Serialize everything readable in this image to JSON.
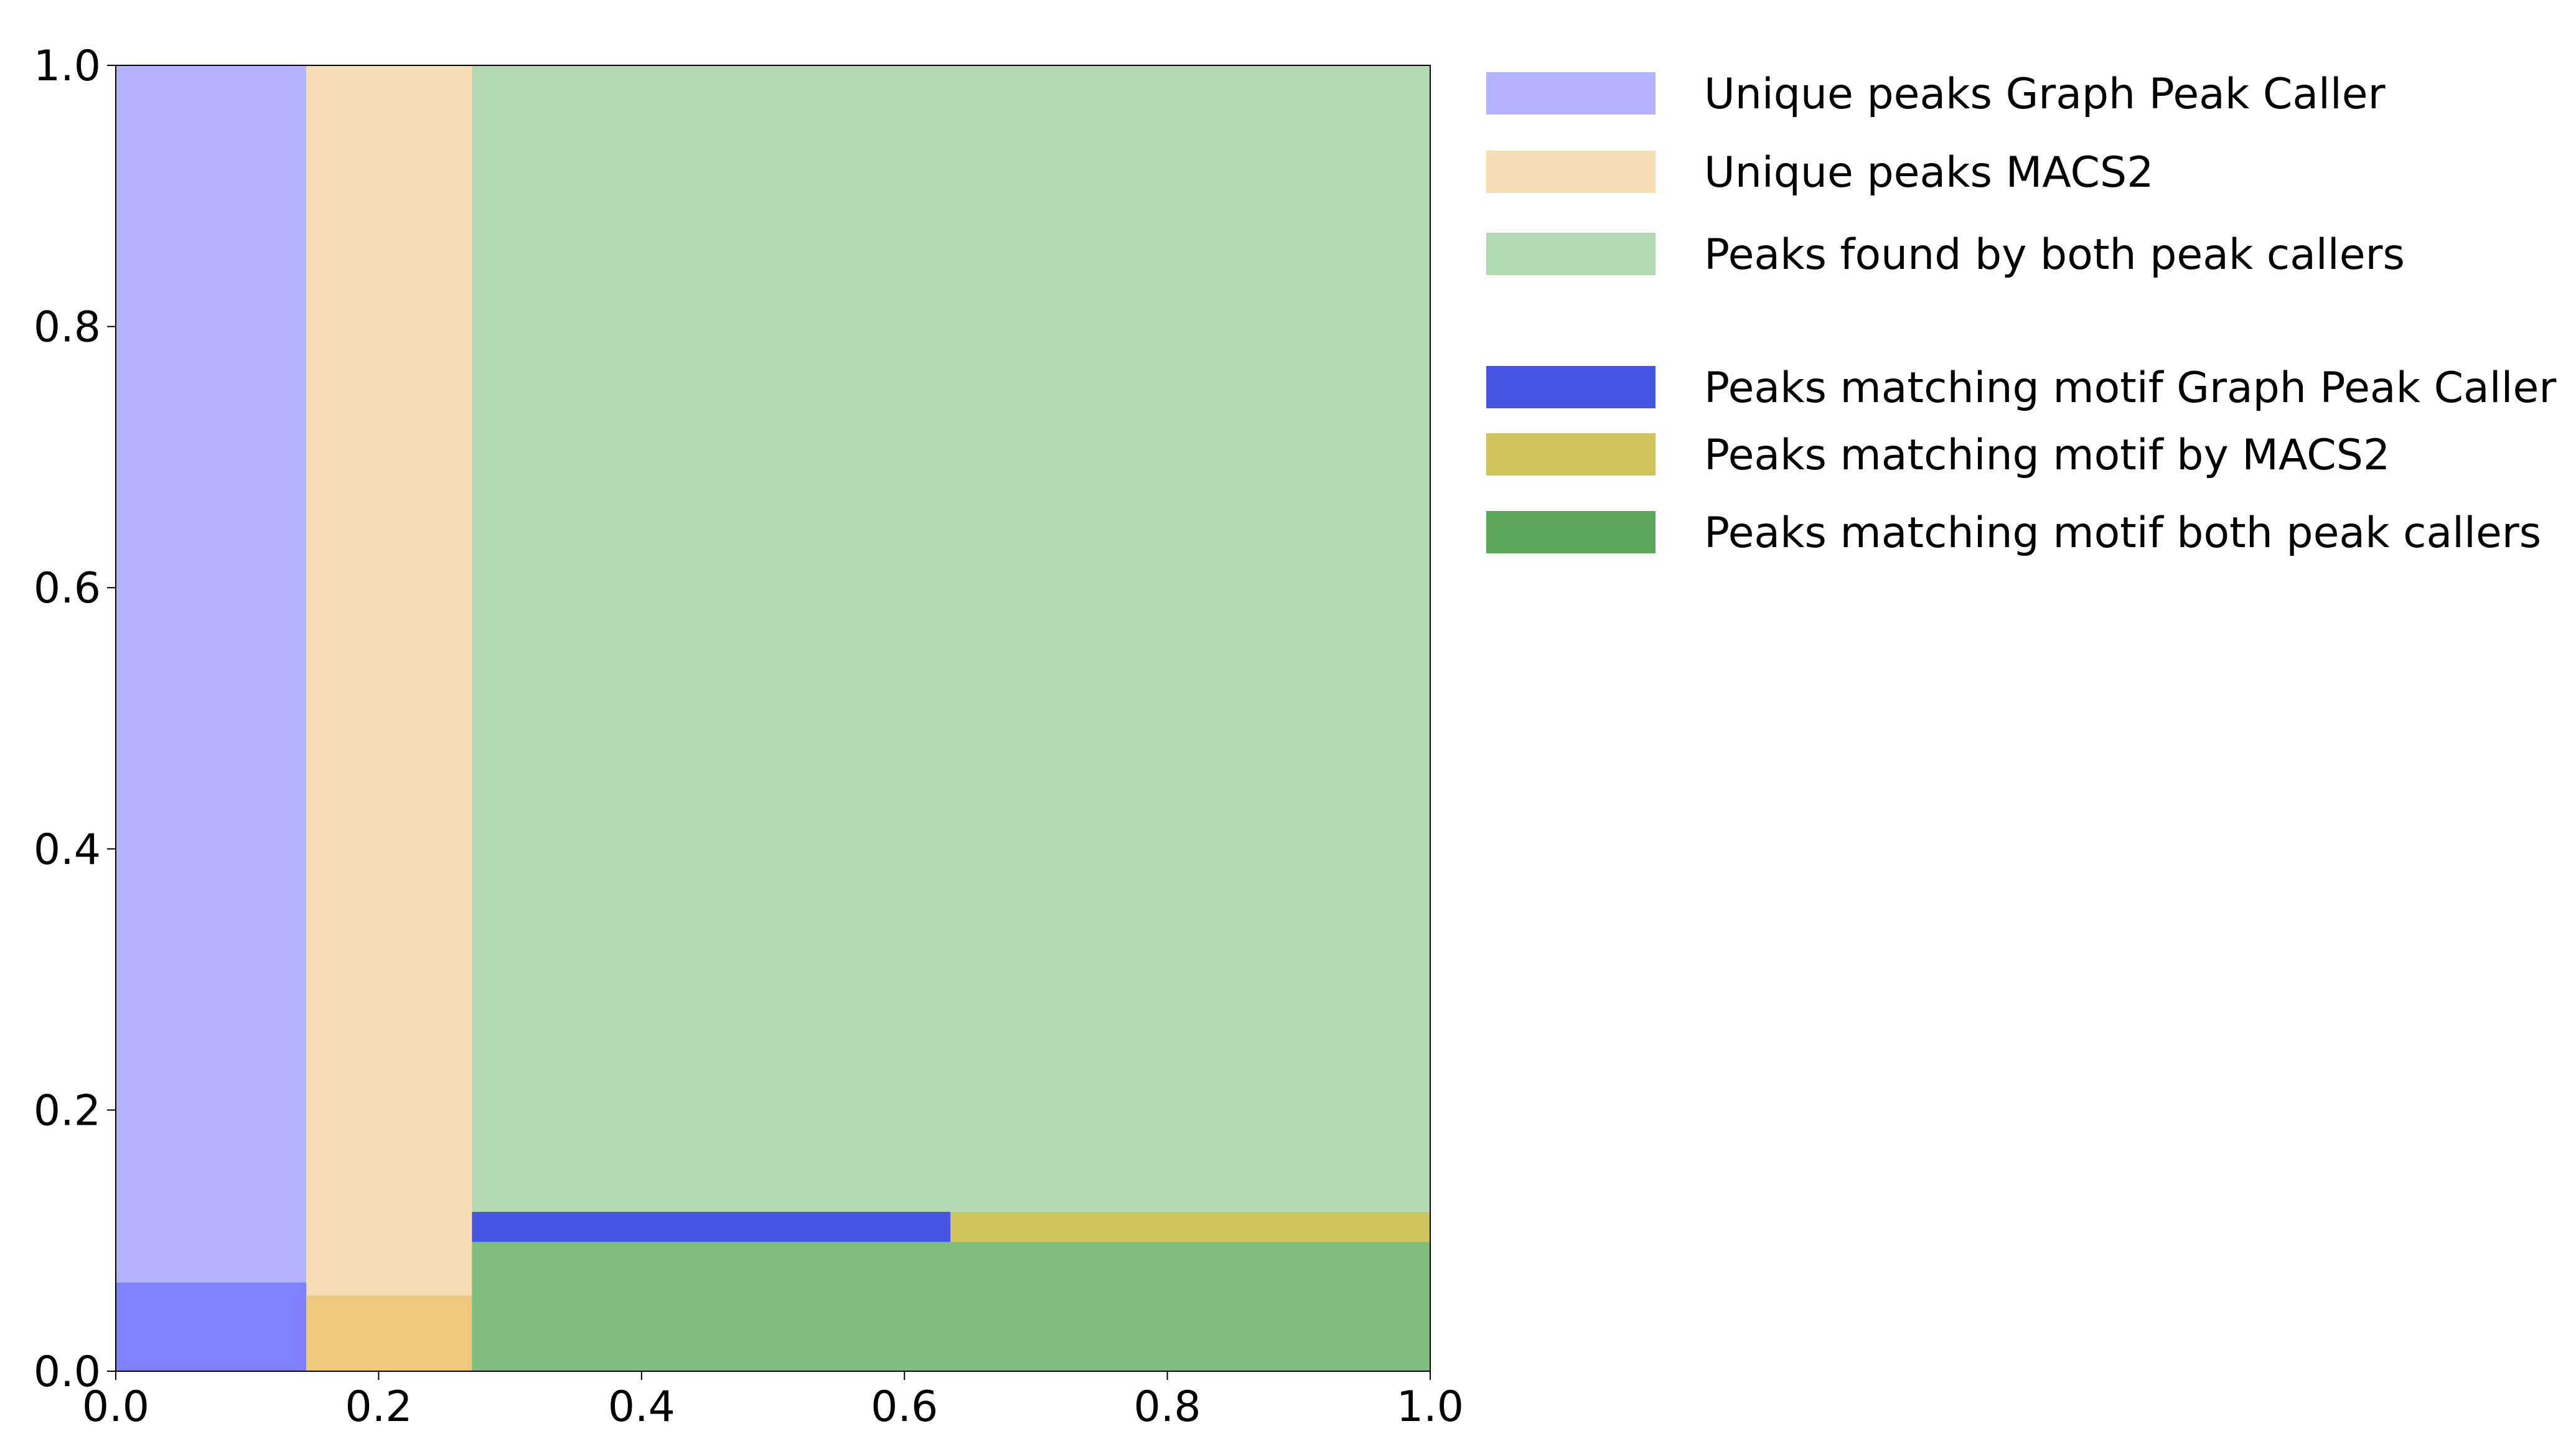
{
  "chart_data": {
    "type": "bar",
    "xlim": [
      0,
      1
    ],
    "ylim": [
      0,
      1
    ],
    "xticks": [
      "0.0",
      "0.2",
      "0.4",
      "0.6",
      "0.8",
      "1.0"
    ],
    "yticks": [
      "0.0",
      "0.2",
      "0.4",
      "0.6",
      "0.8",
      "1.0"
    ],
    "grid": false,
    "legend_position": "right, outside the plot area",
    "regions": [
      {
        "name": "Unique peaks Graph Peak Caller",
        "x0": 0.0,
        "x1": 0.145,
        "y0": 0.0,
        "y1": 1.0,
        "color": "#b3b3ff"
      },
      {
        "name": "Unique peaks MACS2",
        "x0": 0.145,
        "x1": 0.271,
        "y0": 0.0,
        "y1": 1.0,
        "color": "#f5deb3"
      },
      {
        "name": "Peaks found by both peak callers",
        "x0": 0.271,
        "x1": 1.0,
        "y0": 0.0,
        "y1": 1.0,
        "color": "#b2d9b2"
      },
      {
        "name": "Peaks matching motif Graph Peak Caller",
        "x0": 0.0,
        "x1": 0.145,
        "y0": 0.0,
        "y1": 0.068,
        "color": "#8080ff"
      },
      {
        "name": "Peaks matching motif by MACS2",
        "x0": 0.145,
        "x1": 0.271,
        "y0": 0.0,
        "y1": 0.058,
        "color": "#ecc97e"
      },
      {
        "name": "Peaks matching motif both peak callers",
        "x0": 0.271,
        "x1": 1.0,
        "y0": 0.0,
        "y1": 0.099,
        "color": "#7dbd7d"
      },
      {
        "name": "Peaks matching motif Graph Peak Caller",
        "x0": 0.271,
        "x1": 0.635,
        "y0": 0.099,
        "y1": 0.122,
        "color": "#4655e2"
      },
      {
        "name": "Peaks matching motif by MACS2",
        "x0": 0.635,
        "x1": 1.0,
        "y0": 0.099,
        "y1": 0.122,
        "color": "#cfc35b"
      }
    ],
    "legend": [
      {
        "label": "Unique peaks Graph Peak Caller",
        "color": "#b3b3ff"
      },
      {
        "label": "Unique peaks MACS2",
        "color": "#f5deb3"
      },
      {
        "label": "Peaks found by both peak callers",
        "color": "#b2d9b2"
      },
      {
        "label": "Peaks matching motif Graph Peak Caller",
        "color": "#4655e2"
      },
      {
        "label": "Peaks matching motif by MACS2",
        "color": "#cfc35b"
      },
      {
        "label": "Peaks matching motif both peak callers",
        "color": "#5ba85b"
      }
    ]
  }
}
